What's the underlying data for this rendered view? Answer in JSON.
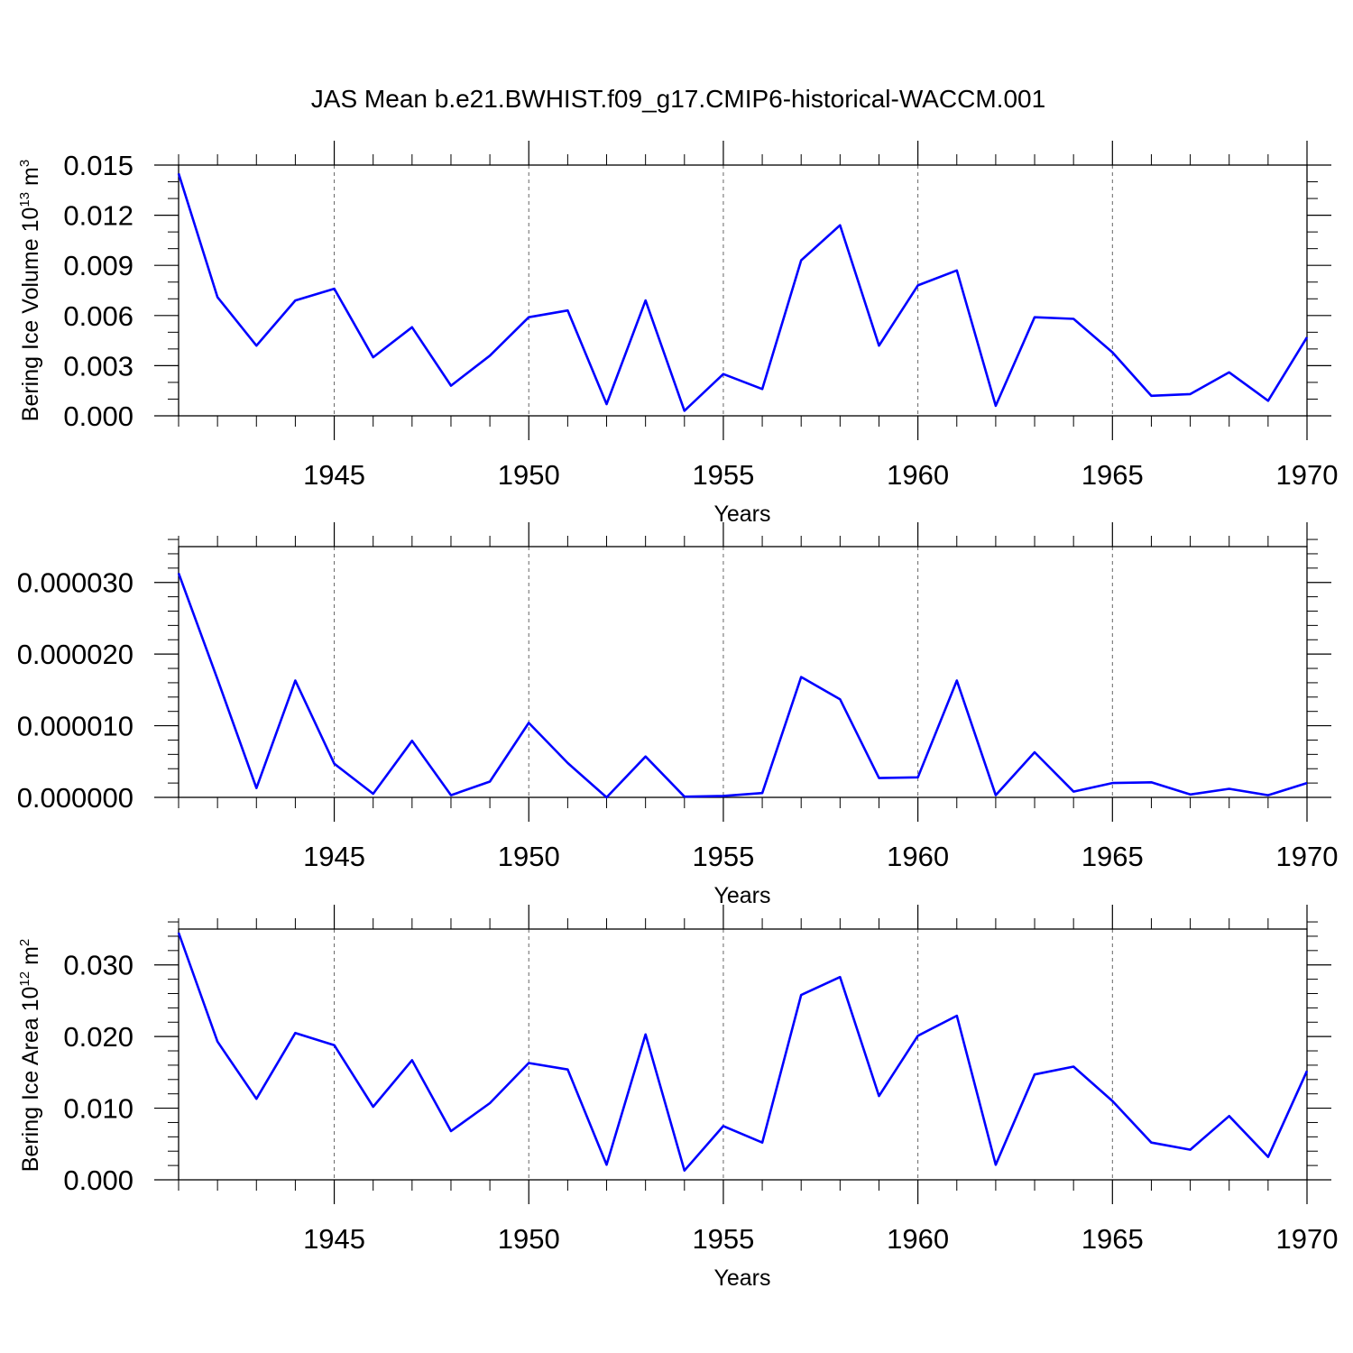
{
  "title": "JAS Mean b.e21.BWHIST.f09_g17.CMIP6-historical-WACCM.001",
  "line_color": "#0000ff",
  "chart_data": [
    {
      "type": "line",
      "ylabel": "Bering Ice Volume 10",
      "ylabel_exp": "13",
      "ylabel_unit": " m",
      "ylabel_unit_exp": "3",
      "xlabel": "Years",
      "xlim": [
        1941,
        1970
      ],
      "ylim": [
        0,
        0.015
      ],
      "x_ticks": [
        1945,
        1950,
        1955,
        1960,
        1965,
        1970
      ],
      "x_tick_labels": [
        "1945",
        "1950",
        "1955",
        "1960",
        "1965",
        "1970"
      ],
      "y_ticks": [
        0,
        0.003,
        0.006,
        0.009,
        0.012,
        0.015
      ],
      "y_tick_labels": [
        "0.000",
        "0.003",
        "0.006",
        "0.009",
        "0.012",
        "0.015"
      ],
      "y_minor_step": 0.001,
      "x": [
        1941,
        1942,
        1943,
        1944,
        1945,
        1946,
        1947,
        1948,
        1949,
        1950,
        1951,
        1952,
        1953,
        1954,
        1955,
        1956,
        1957,
        1958,
        1959,
        1960,
        1961,
        1962,
        1963,
        1964,
        1965,
        1966,
        1967,
        1968,
        1969,
        1970
      ],
      "values": [
        0.0145,
        0.0071,
        0.0042,
        0.0069,
        0.0076,
        0.0035,
        0.0053,
        0.0018,
        0.0036,
        0.0059,
        0.0063,
        0.0007,
        0.0069,
        0.0003,
        0.0025,
        0.0016,
        0.0093,
        0.0114,
        0.0042,
        0.0078,
        0.0087,
        0.0006,
        0.0059,
        0.0058,
        0.0038,
        0.0012,
        0.0013,
        0.0026,
        0.0009,
        0.0047
      ]
    },
    {
      "type": "line",
      "ylabel": "",
      "xlabel": "Years",
      "xlim": [
        1941,
        1970
      ],
      "ylim": [
        0,
        3.5e-05
      ],
      "x_ticks": [
        1945,
        1950,
        1955,
        1960,
        1965,
        1970
      ],
      "x_tick_labels": [
        "1945",
        "1950",
        "1955",
        "1960",
        "1965",
        "1970"
      ],
      "y_ticks": [
        0,
        1e-05,
        2e-05,
        3e-05
      ],
      "y_tick_labels": [
        "0.000000",
        "0.000010",
        "0.000020",
        "0.000030"
      ],
      "y_minor_step": 2e-06,
      "x": [
        1941,
        1942,
        1943,
        1944,
        1945,
        1946,
        1947,
        1948,
        1949,
        1950,
        1951,
        1952,
        1953,
        1954,
        1955,
        1956,
        1957,
        1958,
        1959,
        1960,
        1961,
        1962,
        1963,
        1964,
        1965,
        1966,
        1967,
        1968,
        1969,
        1970
      ],
      "values": [
        3.13e-05,
        1.65e-05,
        1.3e-06,
        1.63e-05,
        4.7e-06,
        5e-07,
        7.9e-06,
        3e-07,
        2.2e-06,
        1.04e-05,
        4.8e-06,
        0.0,
        5.7e-06,
        1e-07,
        2e-07,
        6e-07,
        1.68e-05,
        1.37e-05,
        2.7e-06,
        2.8e-06,
        1.63e-05,
        3e-07,
        6.3e-06,
        8e-07,
        2e-06,
        2.1e-06,
        4e-07,
        1.2e-06,
        3e-07,
        2e-06
      ]
    },
    {
      "type": "line",
      "ylabel": "Bering Ice Area 10",
      "ylabel_exp": "12",
      "ylabel_unit": " m",
      "ylabel_unit_exp": "2",
      "xlabel": "Years",
      "xlim": [
        1941,
        1970
      ],
      "ylim": [
        0,
        0.035
      ],
      "x_ticks": [
        1945,
        1950,
        1955,
        1960,
        1965,
        1970
      ],
      "x_tick_labels": [
        "1945",
        "1950",
        "1955",
        "1960",
        "1965",
        "1970"
      ],
      "y_ticks": [
        0,
        0.01,
        0.02,
        0.03
      ],
      "y_tick_labels": [
        "0.000",
        "0.010",
        "0.020",
        "0.030"
      ],
      "y_minor_step": 0.002,
      "x": [
        1941,
        1942,
        1943,
        1944,
        1945,
        1946,
        1947,
        1948,
        1949,
        1950,
        1951,
        1952,
        1953,
        1954,
        1955,
        1956,
        1957,
        1958,
        1959,
        1960,
        1961,
        1962,
        1963,
        1964,
        1965,
        1966,
        1967,
        1968,
        1969,
        1970
      ],
      "values": [
        0.0345,
        0.0193,
        0.0113,
        0.0205,
        0.0188,
        0.0102,
        0.0167,
        0.0068,
        0.0107,
        0.0163,
        0.0154,
        0.0021,
        0.0203,
        0.0013,
        0.0075,
        0.0052,
        0.0258,
        0.0283,
        0.0117,
        0.0201,
        0.0229,
        0.0021,
        0.0147,
        0.0158,
        0.011,
        0.0052,
        0.0042,
        0.0089,
        0.0032,
        0.0152
      ]
    }
  ]
}
